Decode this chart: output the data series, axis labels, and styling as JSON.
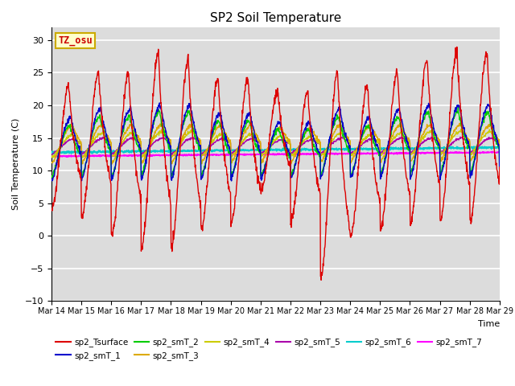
{
  "title": "SP2 Soil Temperature",
  "xlabel": "Time",
  "ylabel": "Soil Temperature (C)",
  "ylim": [
    -10,
    32
  ],
  "yticks": [
    -10,
    -5,
    0,
    5,
    10,
    15,
    20,
    25,
    30
  ],
  "x_labels": [
    "Mar 14",
    "Mar 15",
    "Mar 16",
    "Mar 17",
    "Mar 18",
    "Mar 19",
    "Mar 20",
    "Mar 21",
    "Mar 22",
    "Mar 23",
    "Mar 24",
    "Mar 25",
    "Mar 26",
    "Mar 27",
    "Mar 28",
    "Mar 29"
  ],
  "num_points": 1440,
  "annotation_text": "TZ_osu",
  "annotation_color": "#cc0000",
  "annotation_bg": "#ffffcc",
  "annotation_border": "#ccaa00",
  "series_colors": {
    "sp2_Tsurface": "#dd0000",
    "sp2_smT_1": "#0000cc",
    "sp2_smT_2": "#00cc00",
    "sp2_smT_3": "#ddaa00",
    "sp2_smT_4": "#cccc00",
    "sp2_smT_5": "#aa00aa",
    "sp2_smT_6": "#00cccc",
    "sp2_smT_7": "#ff00ff"
  },
  "bg_color": "#dcdcdc",
  "grid_color": "#ffffff",
  "fig_bg": "#ffffff",
  "figsize": [
    6.4,
    4.8
  ],
  "dpi": 100
}
